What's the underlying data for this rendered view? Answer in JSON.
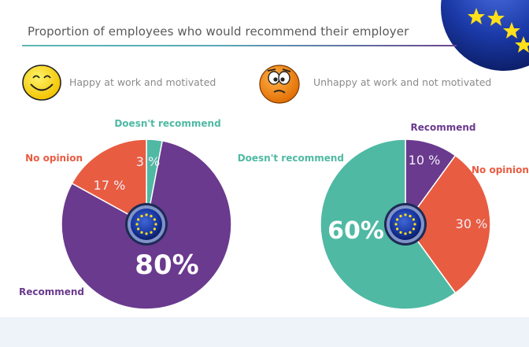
{
  "title": "Proportion of employees who would recommend their employer",
  "legend": {
    "happy_label": "Happy at work and motivated",
    "unhappy_label": "Unhappy at work and not motivated",
    "happy_icon": "happy-smiley-icon",
    "unhappy_icon": "worried-face-icon"
  },
  "colors": {
    "recommend": "#6a3a8e",
    "no_opinion": "#e85c41",
    "doesnt_recommend": "#4fb9a4",
    "label_recommend": "#6a3a8e",
    "label_no_opinion": "#e85c41",
    "label_doesnt_recommend": "#4fb9a4"
  },
  "chart_data": [
    {
      "type": "pie",
      "group": "Happy at work and motivated",
      "slices": [
        {
          "label": "Doesn't recommend",
          "value": 3,
          "value_label": "3 %"
        },
        {
          "label": "Recommend",
          "value": 80,
          "value_label": "80%"
        },
        {
          "label": "No opinion",
          "value": 17,
          "value_label": "17 %"
        }
      ]
    },
    {
      "type": "pie",
      "group": "Unhappy at work and not motivated",
      "slices": [
        {
          "label": "Recommend",
          "value": 10,
          "value_label": "10 %"
        },
        {
          "label": "No opinion",
          "value": 30,
          "value_label": "30 %"
        },
        {
          "label": "Doesn't recommend",
          "value": 60,
          "value_label": "60%"
        }
      ]
    }
  ]
}
